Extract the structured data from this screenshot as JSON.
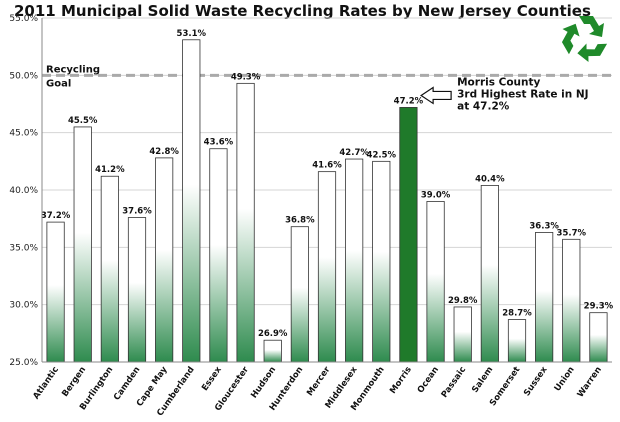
{
  "chart_data": {
    "type": "bar",
    "title": "2011 Municipal Solid Waste Recycling Rates by New Jersey Counties",
    "categories": [
      "Atlantic",
      "Bergen",
      "Burlington",
      "Camden",
      "Cape May",
      "Cumberland",
      "Essex",
      "Gloucester",
      "Hudson",
      "Hunterdon",
      "Mercer",
      "Middlesex",
      "Monmouth",
      "Morris",
      "Ocean",
      "Passaic",
      "Salem",
      "Somerset",
      "Sussex",
      "Union",
      "Warren"
    ],
    "values": [
      37.2,
      45.5,
      41.2,
      37.6,
      42.8,
      53.1,
      43.6,
      49.3,
      26.9,
      36.8,
      41.6,
      42.7,
      42.5,
      47.2,
      39.0,
      29.8,
      40.4,
      28.7,
      36.3,
      35.7,
      29.3
    ],
    "data_labels": [
      "37.2%",
      "45.5%",
      "41.2%",
      "37.6%",
      "42.8%",
      "53.1%",
      "43.6%",
      "49.3%",
      "26.9%",
      "36.8%",
      "41.6%",
      "42.7%",
      "42.5%",
      "47.2%",
      "39.0%",
      "29.8%",
      "40.4%",
      "28.7%",
      "36.3%",
      "35.7%",
      "29.3%"
    ],
    "highlight_category": "Morris",
    "ylim": [
      25,
      55
    ],
    "yticks": [
      25,
      30,
      35,
      40,
      45,
      50,
      55
    ],
    "ytick_labels": [
      "25.0%",
      "30.0%",
      "35.0%",
      "40.0%",
      "45.0%",
      "50.0%",
      "55.0%"
    ],
    "xlabel": "",
    "ylabel": "",
    "grid": true,
    "goal_line": {
      "value": 50,
      "label_line1": "Recycling",
      "label_line2": "Goal"
    },
    "annotation": {
      "target_category": "Morris",
      "lines": [
        "Morris County",
        "3rd Highest Rate in NJ",
        "at 47.2%"
      ]
    },
    "colors": {
      "bar_gradient_top": "#ffffff",
      "bar_gradient_bottom": "#2e8b4e",
      "highlight": "#1f7a2a",
      "goal_line": "#aaaaaa",
      "grid": "#d4d4d4",
      "logo": "#1f8a2a"
    },
    "logo_icon": "recycle-icon"
  }
}
